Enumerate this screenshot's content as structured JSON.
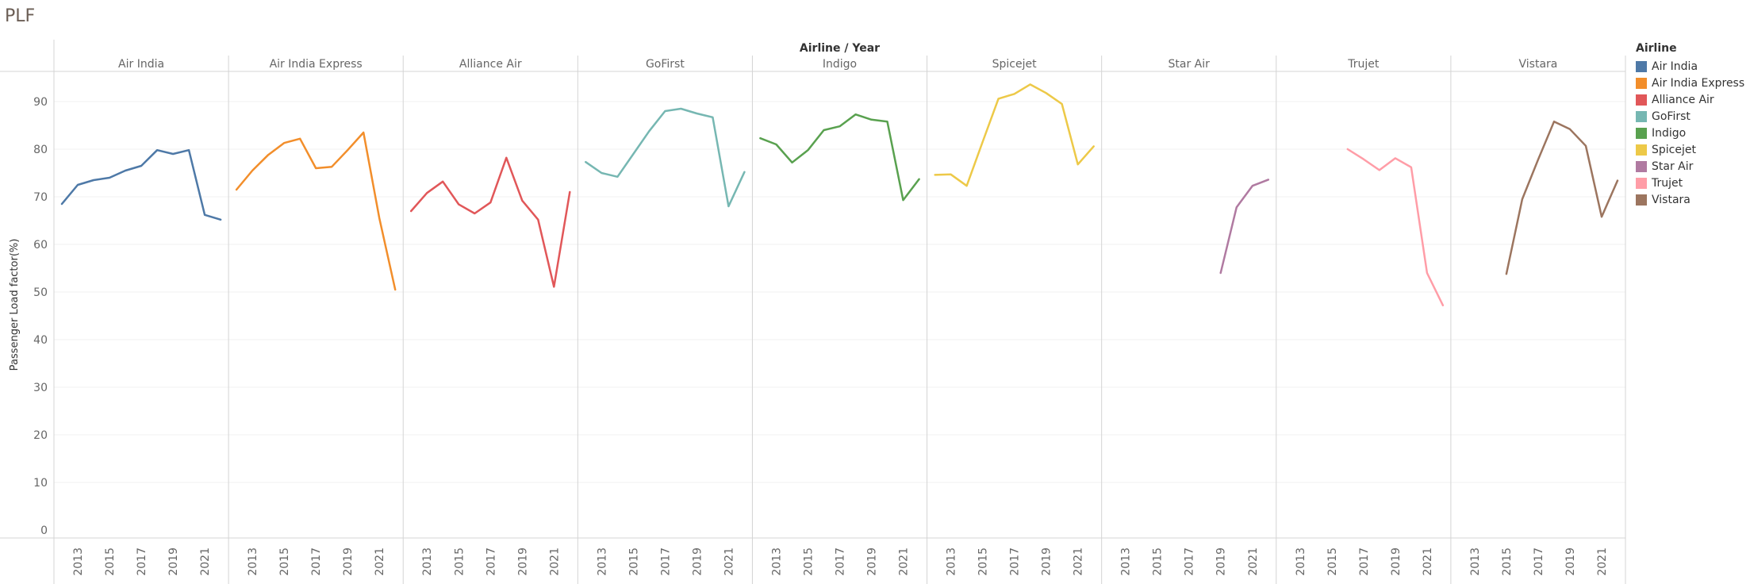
{
  "page": {
    "title": "PLF"
  },
  "chart_data": {
    "type": "line",
    "title": "PLF",
    "column_header": "Airline / Year",
    "ylabel": "Passenger Load factor(%)",
    "ylim": [
      0,
      95
    ],
    "yticks": [
      0,
      10,
      20,
      30,
      40,
      50,
      60,
      70,
      80,
      90
    ],
    "x": [
      2012,
      2013,
      2014,
      2015,
      2016,
      2017,
      2018,
      2019,
      2020,
      2021,
      2022
    ],
    "xticks": [
      2013,
      2015,
      2017,
      2019,
      2021
    ],
    "xlim": [
      2011.5,
      2022.5
    ],
    "grid": true,
    "legend": {
      "title": "Airline",
      "position": "right"
    },
    "series": [
      {
        "name": "Air India",
        "color": "#4e79a7",
        "values": [
          68.5,
          72.5,
          73.5,
          74.0,
          75.5,
          76.5,
          79.8,
          79.0,
          79.8,
          66.2,
          65.2
        ]
      },
      {
        "name": "Air India Express",
        "color": "#f28e2b",
        "values": [
          71.5,
          75.5,
          78.8,
          81.3,
          82.2,
          76.0,
          76.3,
          79.8,
          83.5,
          65.5,
          50.5
        ]
      },
      {
        "name": "Alliance Air",
        "color": "#e15759",
        "values": [
          67.0,
          70.8,
          73.2,
          68.4,
          66.5,
          68.8,
          78.2,
          69.2,
          65.2,
          51.1,
          71.0
        ]
      },
      {
        "name": "GoFirst",
        "color": "#76b7b2",
        "values": [
          77.3,
          75.0,
          74.2,
          79.0,
          83.8,
          88.0,
          88.5,
          87.5,
          86.7,
          68.0,
          75.2
        ]
      },
      {
        "name": "Indigo",
        "color": "#59a14f",
        "values": [
          82.3,
          81.0,
          77.2,
          79.8,
          84.0,
          84.8,
          87.3,
          86.2,
          85.8,
          69.3,
          73.7
        ]
      },
      {
        "name": "Spicejet",
        "color": "#edc948",
        "values": [
          74.6,
          74.7,
          72.3,
          81.5,
          90.6,
          91.6,
          93.6,
          91.8,
          89.5,
          76.8,
          80.6
        ]
      },
      {
        "name": "Star Air",
        "color": "#b07aa1",
        "values": [
          null,
          null,
          null,
          null,
          null,
          null,
          null,
          54.0,
          67.8,
          72.3,
          73.6
        ]
      },
      {
        "name": "Trujet",
        "color": "#ff9da7",
        "values": [
          null,
          null,
          null,
          null,
          80.0,
          77.9,
          75.6,
          78.1,
          76.2,
          54.0,
          47.2
        ]
      },
      {
        "name": "Vistara",
        "color": "#9c755f",
        "values": [
          null,
          null,
          null,
          53.8,
          69.5,
          77.8,
          85.8,
          84.2,
          80.7,
          65.8,
          73.4
        ]
      }
    ]
  }
}
